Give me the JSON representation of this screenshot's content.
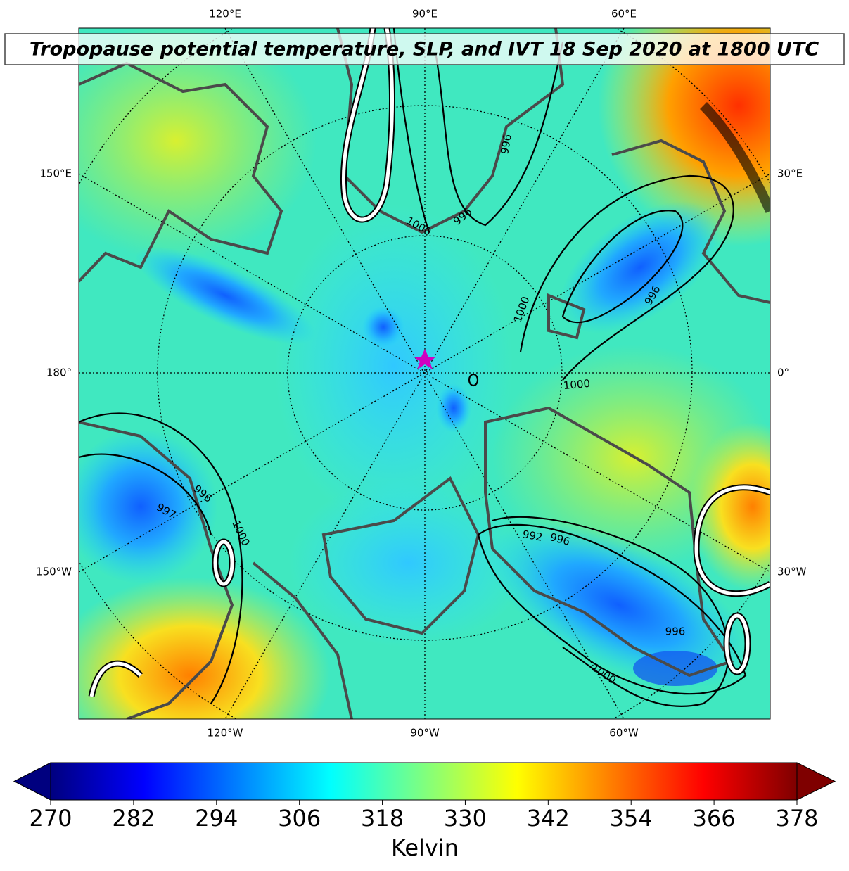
{
  "title": "Tropopause potential temperature, SLP, and IVT 18 Sep 2020 at 1800 UTC",
  "longitude_labels": {
    "top": [
      "120°E",
      "90°E",
      "60°E"
    ],
    "left": [
      "150°E",
      "180°",
      "150°W"
    ],
    "right": [
      "30°E",
      "0°",
      "30°W"
    ],
    "bottom": [
      "120°W",
      "90°W",
      "60°W"
    ]
  },
  "contour_labels": [
    "996",
    "1000",
    "996",
    "996",
    "1000",
    "1000",
    "996",
    "997",
    "1000",
    "992",
    "996",
    "996",
    "1000"
  ],
  "colorbar": {
    "label": "Kelvin",
    "range": [
      270,
      378
    ],
    "ticks": [
      270,
      282,
      294,
      306,
      318,
      330,
      342,
      354,
      366,
      378
    ],
    "colormap": [
      "#00007f",
      "#0000ff",
      "#007fff",
      "#00ffff",
      "#7fff7f",
      "#ffff00",
      "#ff7f00",
      "#ff0000",
      "#7f0000"
    ]
  }
}
